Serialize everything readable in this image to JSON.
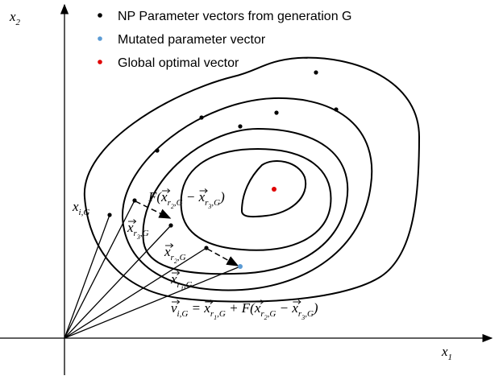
{
  "axes": {
    "x_label": {
      "base": "x",
      "sub": "1"
    },
    "y_label": {
      "base": "x",
      "sub": "2"
    }
  },
  "legend": [
    {
      "label": "NP Parameter vectors from generation G",
      "color": "#000000"
    },
    {
      "label": "Mutated parameter vector",
      "color": "#5b9bd5"
    },
    {
      "label": "Global optimal vector",
      "color": "#e00000"
    }
  ],
  "labels": [
    {
      "runs": [
        {
          "base": "x"
        },
        {
          "sub": "i,G"
        }
      ]
    },
    {
      "runs": [
        {
          "base": "F("
        },
        {
          "vec": "x"
        },
        {
          "sub": "r"
        },
        {
          "subsub": "2"
        },
        {
          "sub": ",G"
        },
        {
          "base": " − "
        },
        {
          "vec": "x"
        },
        {
          "sub": "r"
        },
        {
          "subsub": "3"
        },
        {
          "sub": ",G"
        },
        {
          "base": ")"
        }
      ]
    },
    {
      "runs": [
        {
          "vec": "x"
        },
        {
          "sub": "r"
        },
        {
          "subsub": "3"
        },
        {
          "sub": ",G"
        }
      ]
    },
    {
      "runs": [
        {
          "vec": "x"
        },
        {
          "sub": "r"
        },
        {
          "subsub": "2"
        },
        {
          "sub": ",G"
        }
      ]
    },
    {
      "runs": [
        {
          "vec": "x"
        },
        {
          "sub": "r"
        },
        {
          "subsub": "1"
        },
        {
          "sub": ",G"
        }
      ]
    },
    {
      "runs": [
        {
          "vec": "v"
        },
        {
          "sub": "i,G"
        },
        {
          "base": " = "
        },
        {
          "vec": "x"
        },
        {
          "sub": "r"
        },
        {
          "subsub": "1"
        },
        {
          "sub": ",G"
        },
        {
          "base": " + F("
        },
        {
          "vec": "x"
        },
        {
          "sub": "r"
        },
        {
          "subsub": "2"
        },
        {
          "sub": ",G"
        },
        {
          "base": " − "
        },
        {
          "vec": "x"
        },
        {
          "sub": "r"
        },
        {
          "subsub": "3"
        },
        {
          "sub": ",G"
        },
        {
          "base": ")"
        }
      ]
    }
  ]
}
